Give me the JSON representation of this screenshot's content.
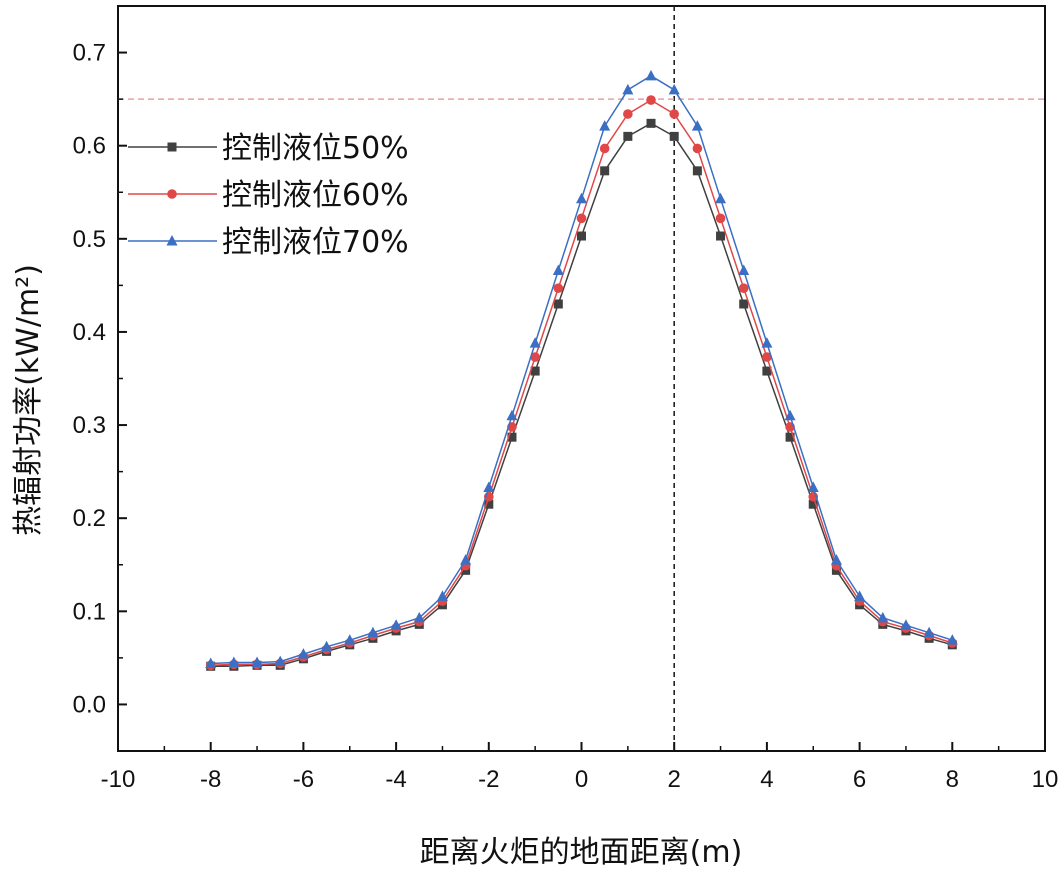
{
  "chart_data": {
    "type": "line",
    "xlabel": "距离火炬的地面距离(m)",
    "ylabel": "热辐射功率(kW/m²)",
    "xlim": [
      -10,
      10
    ],
    "ylim": [
      -0.05,
      0.75
    ],
    "xticks": [
      "-10",
      "-8",
      "-6",
      "-4",
      "-2",
      "0",
      "2",
      "4",
      "6",
      "8",
      "10"
    ],
    "yticks": [
      "0.0",
      "0.1",
      "0.2",
      "0.3",
      "0.4",
      "0.5",
      "0.6",
      "0.7"
    ],
    "grid": false,
    "legend_position": "top-left",
    "reference_lines": [
      {
        "orientation": "vertical",
        "value": 2,
        "style": "dashed",
        "color": "#222222"
      },
      {
        "orientation": "horizontal",
        "value": 0.65,
        "style": "dashed",
        "color": "#e8a0a0"
      }
    ],
    "x": [
      -8,
      -7.5,
      -7,
      -6.5,
      -6,
      -5.5,
      -5,
      -4.5,
      -4,
      -3.5,
      -3,
      -2.5,
      -2,
      -1.5,
      -1,
      -0.5,
      0,
      0.5,
      1,
      1.5,
      2,
      2.5,
      3,
      3.5,
      4,
      4.5,
      5,
      5.5,
      6,
      6.5,
      7,
      7.5,
      8
    ],
    "series": [
      {
        "name": "控制液位50%",
        "color": "#404040",
        "marker": "square",
        "values": [
          0.041,
          0.041,
          0.042,
          0.042,
          0.049,
          0.057,
          0.064,
          0.071,
          0.079,
          0.086,
          0.107,
          0.144,
          0.215,
          0.287,
          0.358,
          0.43,
          0.503,
          0.573,
          0.61,
          0.624,
          0.61,
          0.573,
          0.503,
          0.43,
          0.358,
          0.287,
          0.215,
          0.144,
          0.107,
          0.086,
          0.079,
          0.071,
          0.064
        ]
      },
      {
        "name": "控制液位60%",
        "color": "#e04848",
        "marker": "circle",
        "values": [
          0.042,
          0.043,
          0.043,
          0.044,
          0.051,
          0.059,
          0.066,
          0.074,
          0.082,
          0.089,
          0.111,
          0.149,
          0.223,
          0.298,
          0.373,
          0.447,
          0.522,
          0.597,
          0.634,
          0.649,
          0.634,
          0.597,
          0.522,
          0.447,
          0.373,
          0.298,
          0.223,
          0.149,
          0.111,
          0.089,
          0.082,
          0.074,
          0.066
        ]
      },
      {
        "name": "控制液位70%",
        "color": "#3b6fc4",
        "marker": "triangle",
        "values": [
          0.044,
          0.045,
          0.045,
          0.046,
          0.054,
          0.062,
          0.069,
          0.077,
          0.085,
          0.093,
          0.116,
          0.155,
          0.233,
          0.31,
          0.388,
          0.466,
          0.543,
          0.621,
          0.66,
          0.675,
          0.66,
          0.621,
          0.543,
          0.466,
          0.388,
          0.31,
          0.233,
          0.155,
          0.116,
          0.093,
          0.085,
          0.077,
          0.069
        ]
      }
    ]
  }
}
